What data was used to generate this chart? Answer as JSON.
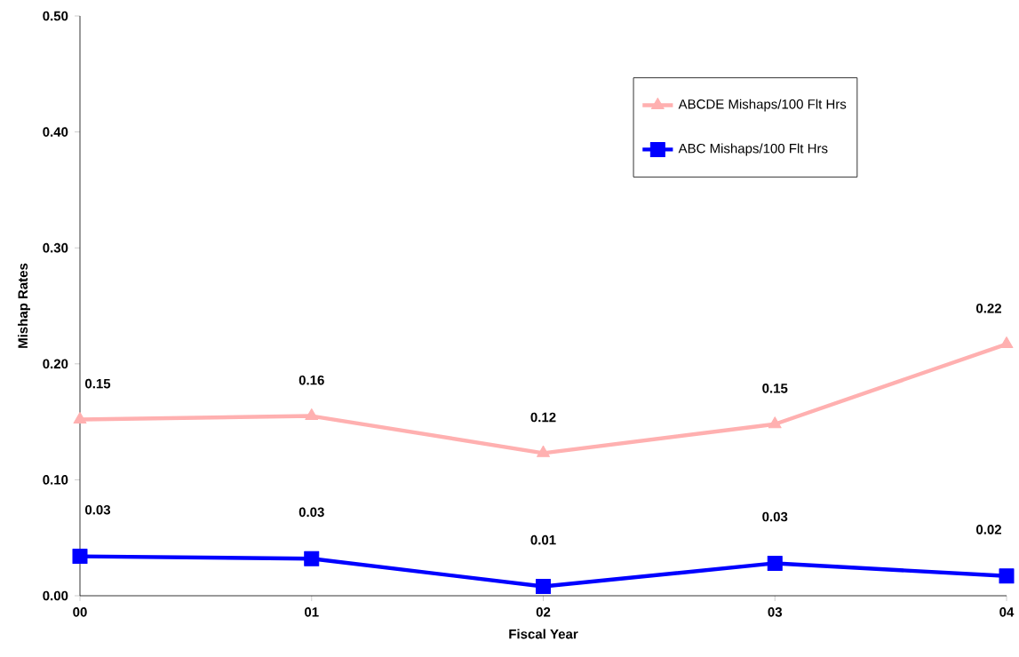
{
  "chart_data": {
    "type": "line",
    "xlabel": "Fiscal Year",
    "ylabel": "Mishap Rates",
    "categories": [
      "00",
      "01",
      "02",
      "03",
      "04"
    ],
    "series": [
      {
        "name": "ABCDE Mishaps/100 Flt Hrs",
        "color": "#ffb0b0",
        "marker": "triangle",
        "values": [
          0.152,
          0.155,
          0.123,
          0.148,
          0.217
        ],
        "value_labels": [
          "0.15",
          "0.16",
          "0.12",
          "0.15",
          "0.22"
        ]
      },
      {
        "name": "ABC Mishaps/100 Flt Hrs",
        "color": "#0000ff",
        "marker": "square",
        "values": [
          0.034,
          0.032,
          0.008,
          0.028,
          0.017
        ],
        "value_labels": [
          "0.03",
          "0.03",
          "0.01",
          "0.03",
          "0.02"
        ]
      }
    ],
    "ylim": [
      0,
      0.5
    ],
    "yticks": [
      {
        "value": 0,
        "label": "0.00"
      },
      {
        "value": 0.1,
        "label": "0.10"
      },
      {
        "value": 0.2,
        "label": "0.20"
      },
      {
        "value": 0.3,
        "label": "0.30"
      },
      {
        "value": 0.4,
        "label": "0.40"
      },
      {
        "value": 0.5,
        "label": "0.50"
      }
    ],
    "legend": "top right"
  }
}
